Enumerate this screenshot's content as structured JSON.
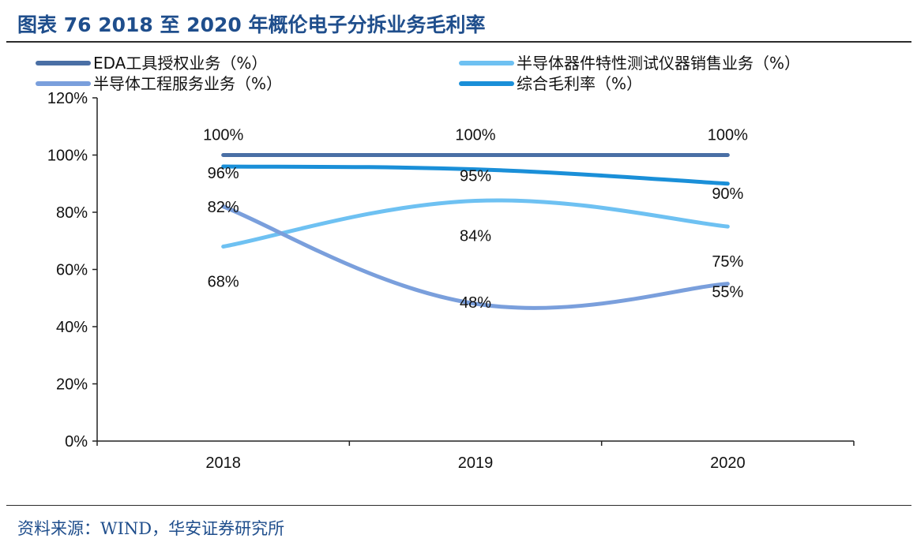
{
  "header": {
    "title": "图表 76 2018 至 2020 年概伦电子分拆业务毛利率"
  },
  "footer": {
    "source": "资料来源：WIND，华安证券研究所"
  },
  "chart_data": {
    "type": "line",
    "x": [
      "2018",
      "2019",
      "2020"
    ],
    "ylim": [
      0,
      120
    ],
    "yticks": [
      0,
      20,
      40,
      60,
      80,
      100,
      120
    ],
    "ytick_labels": [
      "0%",
      "20%",
      "40%",
      "60%",
      "80%",
      "100%",
      "120%"
    ],
    "legend_placement": "top",
    "grid": false,
    "series": [
      {
        "name": "EDA工具授权业务（%）",
        "values": [
          100,
          100,
          100
        ],
        "labels": [
          "100%",
          "100%",
          "100%"
        ],
        "color": "#4a6fa5"
      },
      {
        "name": "半导体器件特性测试仪器销售业务（%）",
        "values": [
          68,
          84,
          75
        ],
        "labels": [
          "68%",
          "84%",
          "75%"
        ],
        "color": "#6ec1f2"
      },
      {
        "name": "半导体工程服务业务（%）",
        "values": [
          82,
          48,
          55
        ],
        "labels": [
          "82%",
          "48%",
          "55%"
        ],
        "color": "#7a9fdc"
      },
      {
        "name": "综合毛利率（%）",
        "values": [
          96,
          95,
          90
        ],
        "labels": [
          "96%",
          "95%",
          "90%"
        ],
        "color": "#1a8fd8"
      }
    ]
  }
}
